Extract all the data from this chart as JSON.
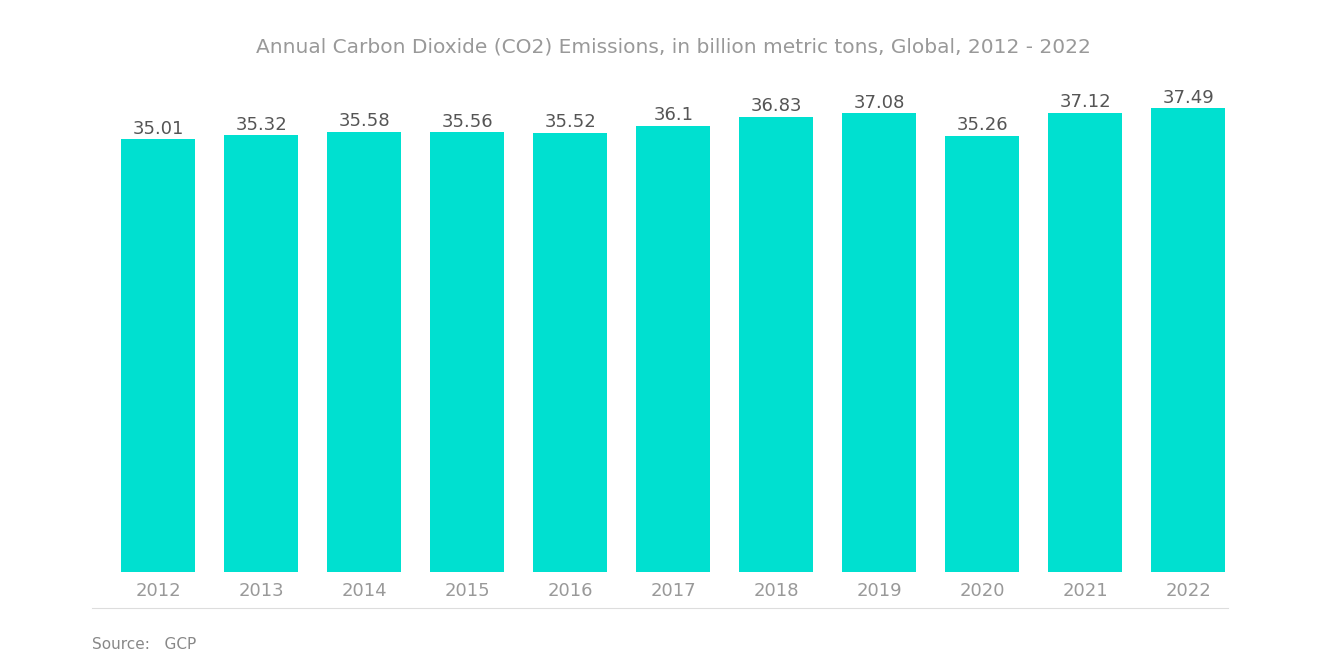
{
  "title": "Annual Carbon Dioxide (CO2) Emissions, in billion metric tons, Global, 2012 - 2022",
  "years": [
    2012,
    2013,
    2014,
    2015,
    2016,
    2017,
    2018,
    2019,
    2020,
    2021,
    2022
  ],
  "values": [
    35.01,
    35.32,
    35.58,
    35.56,
    35.52,
    36.1,
    36.83,
    37.08,
    35.26,
    37.12,
    37.49
  ],
  "bar_color": "#00E0D0",
  "title_color": "#999999",
  "label_color": "#555555",
  "tick_color": "#999999",
  "background_color": "#ffffff",
  "source_text": "Source:   GCP",
  "source_color": "#888888",
  "title_fontsize": 14.5,
  "label_fontsize": 13,
  "tick_fontsize": 13,
  "source_fontsize": 11,
  "ylim": [
    0,
    39.8
  ],
  "bar_width": 0.72
}
